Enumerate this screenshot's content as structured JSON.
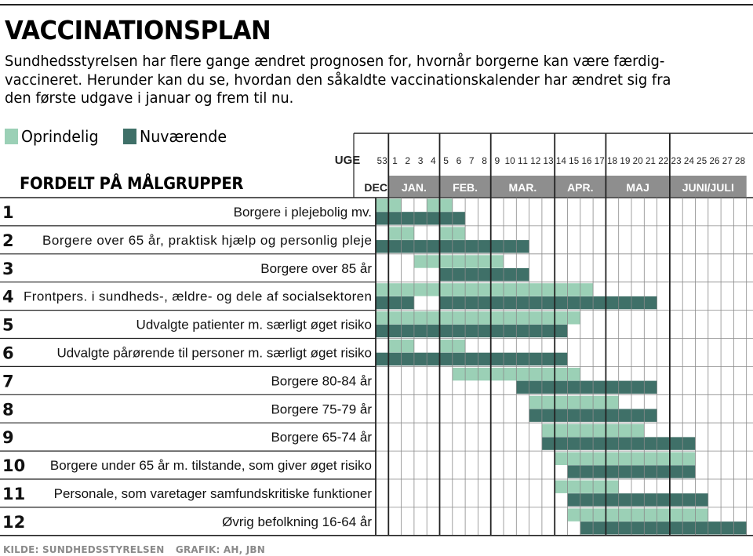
{
  "title": "VACCINATIONSPLAN",
  "intro": "Sundhedsstyrelsen har flere gange ændret prognosen for, hvornår borgerne kan være færdig-vaccineret. Herunder kan du se, hvordan den såkaldte vaccinationskalender har ændret sig fra den første udgave i januar og frem til nu.",
  "legend": {
    "original_label": "Oprindelig",
    "current_label": "Nuværende"
  },
  "colors": {
    "original": "#9bd0b6",
    "current": "#3f7068",
    "month_band": "#8e8e8e",
    "grid": "#8a8a8a",
    "rule": "#222222"
  },
  "section_title": "FORDELT PÅ MÅLGRUPPER",
  "source": {
    "kilde": "KILDE: SUNDHEDSSTYRELSEN",
    "grafik": "GRAFIK: AH, JBN"
  },
  "chart_data": {
    "type": "gantt",
    "week_axis_label": "UGE",
    "weeks": [
      "53",
      "1",
      "2",
      "3",
      "4",
      "5",
      "6",
      "7",
      "8",
      "9",
      "10",
      "11",
      "12",
      "13",
      "14",
      "15",
      "16",
      "17",
      "18",
      "19",
      "20",
      "21",
      "22",
      "23",
      "24",
      "25",
      "26",
      "27",
      "28"
    ],
    "months": [
      {
        "label": "DEC.",
        "first_week_index": 0,
        "week_count": 1
      },
      {
        "label": "JAN.",
        "first_week_index": 1,
        "week_count": 4
      },
      {
        "label": "FEB.",
        "first_week_index": 5,
        "week_count": 4
      },
      {
        "label": "MAR.",
        "first_week_index": 9,
        "week_count": 5
      },
      {
        "label": "APR.",
        "first_week_index": 14,
        "week_count": 4
      },
      {
        "label": "MAJ",
        "first_week_index": 18,
        "week_count": 5
      },
      {
        "label": "JUNI/JULI",
        "first_week_index": 23,
        "week_count": 6
      }
    ],
    "groups": [
      {
        "num": "1",
        "label": "Borgere i plejebolig mv.",
        "original_weeks": [
          "53",
          "1",
          "4",
          "5"
        ],
        "current_weeks": [
          "53",
          "1",
          "2",
          "3",
          "4",
          "5",
          "6"
        ]
      },
      {
        "num": "2",
        "label": "Borgere over 65 år, praktisk hjælp og personlig pleje",
        "original_weeks": [
          "1",
          "2",
          "5",
          "6"
        ],
        "current_weeks": [
          "53",
          "1",
          "2",
          "3",
          "4",
          "5",
          "6",
          "7",
          "8",
          "9",
          "10",
          "11"
        ]
      },
      {
        "num": "3",
        "label": "Borgere over 85 år",
        "original_weeks": [
          "3",
          "4",
          "5",
          "6",
          "7",
          "8",
          "9"
        ],
        "current_weeks": [
          "5",
          "6",
          "7",
          "8",
          "9",
          "10",
          "11"
        ]
      },
      {
        "num": "4",
        "label": "Frontpers. i sundheds-, ældre- og dele af socialsektoren",
        "original_weeks": [
          "53",
          "1",
          "2",
          "3",
          "4",
          "5",
          "6",
          "7",
          "8",
          "9",
          "10",
          "11",
          "12",
          "13",
          "14",
          "15",
          "16"
        ],
        "current_weeks": [
          "53",
          "1",
          "2",
          "5",
          "6",
          "7",
          "8",
          "9",
          "10",
          "11",
          "12",
          "13",
          "14",
          "15",
          "16",
          "17",
          "18",
          "19",
          "20",
          "21"
        ]
      },
      {
        "num": "5",
        "label": "Udvalgte patienter m. særligt øget risiko",
        "original_weeks": [
          "53",
          "1",
          "2",
          "3",
          "4",
          "5",
          "6",
          "7",
          "8",
          "9",
          "10",
          "11",
          "12",
          "13",
          "14",
          "15"
        ],
        "current_weeks": [
          "53",
          "1",
          "2",
          "3",
          "4",
          "5",
          "6",
          "7",
          "8",
          "9",
          "10",
          "11",
          "12",
          "13",
          "14"
        ]
      },
      {
        "num": "6",
        "label": "Udvalgte pårørende til personer m. særligt øget risiko",
        "original_weeks": [
          "1",
          "2",
          "5",
          "6"
        ],
        "current_weeks": [
          "53",
          "1",
          "2",
          "3",
          "4",
          "5",
          "6",
          "7",
          "8",
          "9",
          "10",
          "11",
          "12",
          "13",
          "14"
        ]
      },
      {
        "num": "7",
        "label": "Borgere 80-84 år",
        "original_weeks": [
          "6",
          "7",
          "8",
          "9",
          "10",
          "11",
          "12",
          "13",
          "14",
          "15"
        ],
        "current_weeks": [
          "11",
          "12",
          "13",
          "14",
          "15",
          "16",
          "17",
          "18",
          "19",
          "20",
          "21"
        ]
      },
      {
        "num": "8",
        "label": "Borgere 75-79 år",
        "original_weeks": [
          "12",
          "13",
          "14",
          "15",
          "16",
          "17",
          "18"
        ],
        "current_weeks": [
          "12",
          "13",
          "14",
          "15",
          "16",
          "17",
          "18",
          "19",
          "20",
          "21"
        ]
      },
      {
        "num": "9",
        "label": "Borgere 65-74 år",
        "original_weeks": [
          "13",
          "14",
          "15",
          "16",
          "17",
          "18",
          "19",
          "20"
        ],
        "current_weeks": [
          "13",
          "14",
          "15",
          "16",
          "17",
          "18",
          "19",
          "20",
          "21",
          "22",
          "23",
          "24"
        ]
      },
      {
        "num": "10",
        "label": "Borgere under 65 år m. tilstande, som giver øget risiko",
        "original_weeks": [
          "14",
          "15",
          "16",
          "17",
          "18",
          "19",
          "20",
          "21",
          "22",
          "23",
          "24"
        ],
        "current_weeks": [
          "15",
          "16",
          "17",
          "18",
          "19",
          "20",
          "21",
          "22",
          "23",
          "24"
        ]
      },
      {
        "num": "11",
        "label": "Personale, som varetager samfundskritiske funktioner",
        "original_weeks": [
          "14",
          "15",
          "16",
          "17",
          "18"
        ],
        "current_weeks": [
          "15",
          "16",
          "17",
          "18",
          "19",
          "20",
          "21",
          "22",
          "23",
          "24",
          "25"
        ]
      },
      {
        "num": "12",
        "label": "Øvrig befolkning 16-64 år",
        "original_weeks": [
          "15",
          "16",
          "17",
          "18",
          "19",
          "20",
          "21",
          "22",
          "23",
          "24",
          "25"
        ],
        "current_weeks": [
          "16",
          "17",
          "18",
          "19",
          "20",
          "21",
          "22",
          "23",
          "24",
          "25",
          "26",
          "27",
          "28"
        ]
      }
    ]
  }
}
